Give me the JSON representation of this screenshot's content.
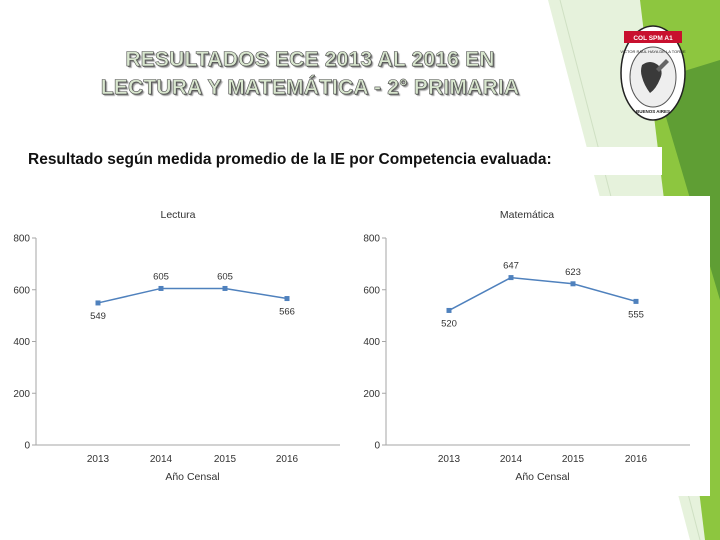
{
  "slide": {
    "title_line1": "RESULTADOS ECE 2013 AL 2016 EN",
    "title_line2": "LECTURA Y MATEMÁTICA - 2° PRIMARIA",
    "subtitle": "Resultado según medida promedio de la IE por Competencia evaluada:"
  },
  "logo": {
    "band_text": "COL SPM A1",
    "ring_text": "VICTOR RAUL HAYA DE LA TORRE",
    "bottom_text": "BUENOS AIRES"
  },
  "colors": {
    "series": "#4f81bd",
    "axis": "#a6a6a6",
    "accent_green": "#8dc63f",
    "dark_green": "#4a8f2f"
  },
  "chart_data": [
    {
      "type": "line",
      "title": "Lectura",
      "xlabel": "Año Censal",
      "ylabel": "",
      "categories": [
        "2013",
        "2014",
        "2015",
        "2016"
      ],
      "values": [
        549,
        605,
        605,
        566
      ],
      "data_labels": [
        "549",
        "605",
        "605",
        "566"
      ],
      "ylim": [
        0,
        800
      ],
      "yticks": [
        "0",
        "200",
        "400",
        "600",
        "800"
      ],
      "grid": false
    },
    {
      "type": "line",
      "title": "Matemática",
      "xlabel": "Año Censal",
      "ylabel": "",
      "categories": [
        "2013",
        "2014",
        "2015",
        "2016"
      ],
      "values": [
        520,
        647,
        623,
        555
      ],
      "data_labels": [
        "520",
        "647",
        "623",
        "555"
      ],
      "ylim": [
        0,
        800
      ],
      "yticks": [
        "0",
        "200",
        "400",
        "600",
        "800"
      ],
      "grid": false
    }
  ]
}
